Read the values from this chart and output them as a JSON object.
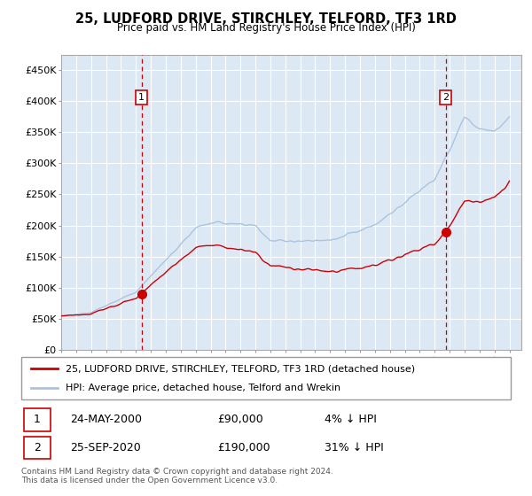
{
  "title": "25, LUDFORD DRIVE, STIRCHLEY, TELFORD, TF3 1RD",
  "subtitle": "Price paid vs. HM Land Registry's House Price Index (HPI)",
  "legend_line1": "25, LUDFORD DRIVE, STIRCHLEY, TELFORD, TF3 1RD (detached house)",
  "legend_line2": "HPI: Average price, detached house, Telford and Wrekin",
  "transaction1_date": "24-MAY-2000",
  "transaction1_price": "£90,000",
  "transaction1_hpi": "4% ↓ HPI",
  "transaction2_date": "25-SEP-2020",
  "transaction2_price": "£190,000",
  "transaction2_hpi": "31% ↓ HPI",
  "footer": "Contains HM Land Registry data © Crown copyright and database right 2024.\nThis data is licensed under the Open Government Licence v3.0.",
  "hpi_color": "#aac4e0",
  "price_color": "#cc0000",
  "marker_color": "#cc0000",
  "vline_color": "#cc0000",
  "bg_color": "#dde8f5",
  "grid_color": "#c8d8ee",
  "ylim": [
    0,
    475000
  ],
  "yticks": [
    0,
    50000,
    100000,
    150000,
    200000,
    250000,
    300000,
    350000,
    400000,
    450000
  ],
  "sale1_year": 2000.38,
  "sale1_price": 90000,
  "sale2_year": 2020.73,
  "sale2_price": 190000
}
